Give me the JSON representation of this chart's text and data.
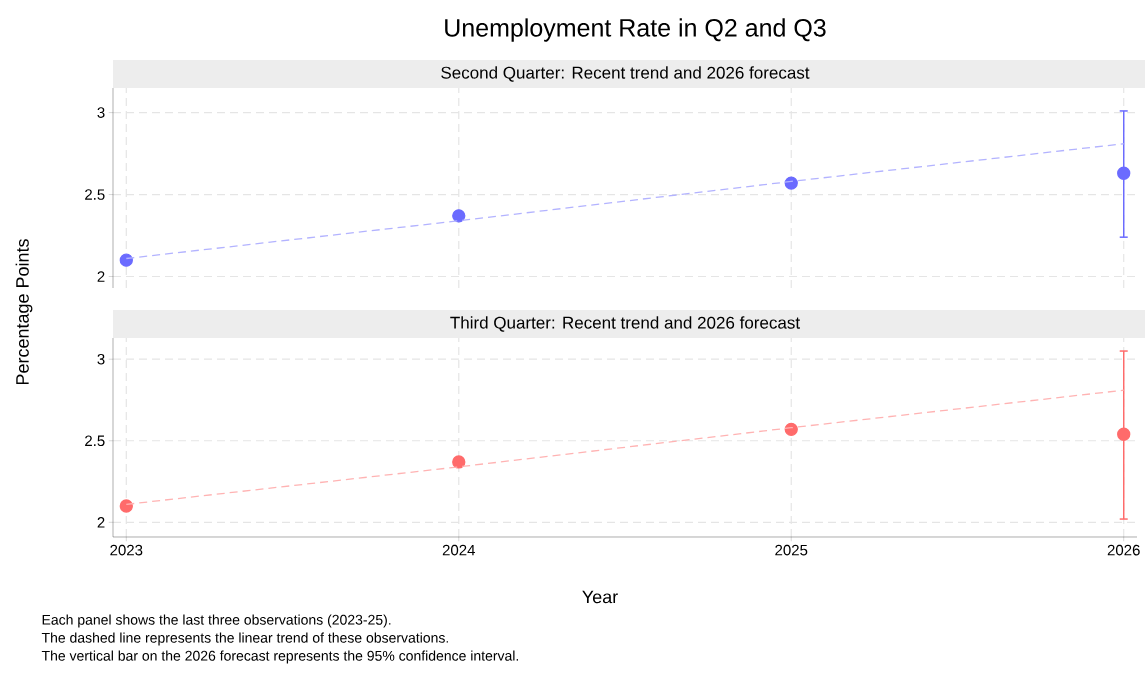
{
  "chart_data": [
    {
      "type": "scatter",
      "title": "Unemployment Rate in Q2 and Q3",
      "subtitle": "Second Quarter: Recent trend and 2026 forecast",
      "ylabel": "Percentage Points",
      "x": [
        2023,
        2024,
        2025,
        2026
      ],
      "xlim": [
        2022.96,
        2026.04
      ],
      "xticks": [
        2023,
        2024,
        2025,
        2026
      ],
      "ylim": [
        1.93,
        3.15
      ],
      "yticks": [
        2,
        2.5,
        3
      ],
      "grid": true,
      "marker": "circle",
      "tick_labels": "y",
      "series": [
        {
          "color": "#6b6bff",
          "values": [
            2.1,
            2.37,
            2.57,
            2.63
          ],
          "errors": [
            null,
            null,
            null,
            [
              2.24,
              3.01
            ]
          ]
        },
        {
          "type": "line",
          "values": [
            2.11,
            2.34,
            2.58,
            2.81
          ],
          "color": "#b3b3ff",
          "line_style": "dashed",
          "marker": "none"
        }
      ]
    },
    {
      "type": "scatter",
      "subtitle": "Third Quarter: Recent trend and 2026 forecast",
      "xlabel": "Year",
      "x": [
        2023,
        2024,
        2025,
        2026
      ],
      "xlim": [
        2022.96,
        2026.04
      ],
      "xticks": [
        2023,
        2024,
        2025,
        2026
      ],
      "ylim": [
        1.91,
        3.13
      ],
      "yticks": [
        2,
        2.5,
        3
      ],
      "grid": true,
      "marker": "circle",
      "series": [
        {
          "color": "#ff6b6b",
          "values": [
            2.1,
            2.37,
            2.57,
            2.54
          ],
          "errors": [
            null,
            null,
            null,
            [
              2.02,
              3.05
            ]
          ]
        },
        {
          "type": "line",
          "values": [
            2.11,
            2.34,
            2.58,
            2.81
          ],
          "color": "#ffb3b3",
          "line_style": "dashed",
          "marker": "none"
        }
      ],
      "annotations": [
        "Each panel shows the last three observations (2023-25).",
        "The dashed line represents the linear trend of these observations.",
        "The vertical bar on the 2026 forecast represents the 95% confidence interval."
      ]
    }
  ]
}
